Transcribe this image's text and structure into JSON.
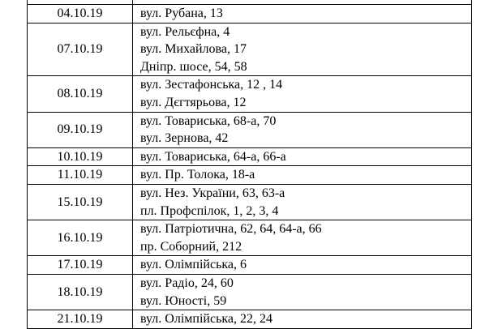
{
  "table": {
    "rows": [
      {
        "date": "04.10.19",
        "lines": [
          "вул. Рубана, 13"
        ]
      },
      {
        "date": "07.10.19",
        "lines": [
          "вул. Рельєфна, 4",
          "вул. Михайлова, 17",
          "Дніпр. шосе, 54, 58"
        ]
      },
      {
        "date": "08.10.19",
        "lines": [
          "вул. Зестафонська, 12 , 14",
          "вул. Дєгтярьова, 12"
        ]
      },
      {
        "date": "09.10.19",
        "lines": [
          "вул. Товариська, 68-а, 70",
          "вул. Зернова, 42"
        ]
      },
      {
        "date": "10.10.19",
        "lines": [
          "вул. Товариська, 64-а, 66-а"
        ]
      },
      {
        "date": "11.10.19",
        "lines": [
          "вул. Пр. Толока, 18-а"
        ]
      },
      {
        "date": "15.10.19",
        "lines": [
          "вул. Нез. України, 63, 63-а",
          "пл. Профспілок, 1, 2, 3, 4"
        ]
      },
      {
        "date": "16.10.19",
        "lines": [
          "вул. Патріотична, 62, 64, 64-а, 66",
          "пр. Соборний, 212"
        ]
      },
      {
        "date": "17.10.19",
        "lines": [
          "вул. Олімпійська, 6"
        ]
      },
      {
        "date": "18.10.19",
        "lines": [
          "вул. Радіо, 24, 60",
          "вул. Юності, 59"
        ]
      },
      {
        "date": "21.10.19",
        "lines": [
          "вул. Олімпійська, 22, 24"
        ]
      }
    ]
  }
}
